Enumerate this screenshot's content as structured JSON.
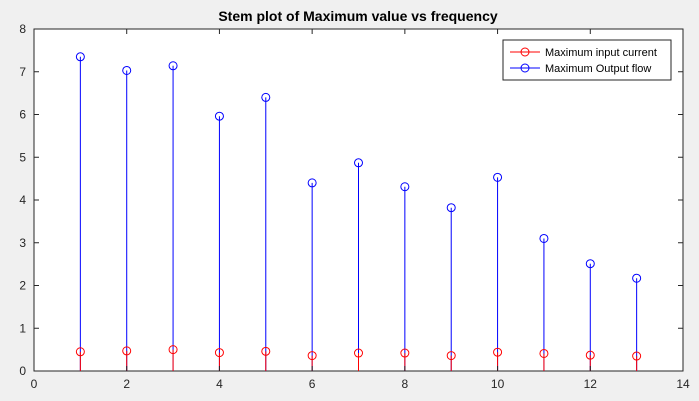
{
  "chart_data": {
    "type": "stem",
    "title": "Stem plot of Maximum value vs frequency",
    "xlabel": "",
    "ylabel": "",
    "xlim": [
      0,
      14
    ],
    "ylim": [
      0,
      8
    ],
    "xticks": [
      "0",
      "2",
      "4",
      "6",
      "8",
      "10",
      "12",
      "14"
    ],
    "yticks": [
      "0",
      "1",
      "2",
      "3",
      "4",
      "5",
      "6",
      "7",
      "8"
    ],
    "grid": false,
    "legend_position": "top-right",
    "x": [
      1,
      2,
      3,
      4,
      5,
      6,
      7,
      8,
      9,
      10,
      11,
      12,
      13
    ],
    "series": [
      {
        "name": "Maximum input current",
        "color": "#ff0000",
        "marker": "circle",
        "values": [
          0.45,
          0.47,
          0.5,
          0.43,
          0.46,
          0.36,
          0.42,
          0.42,
          0.36,
          0.44,
          0.41,
          0.37,
          0.35
        ]
      },
      {
        "name": "Maximum Output flow",
        "color": "#0000ff",
        "marker": "circle",
        "values": [
          7.35,
          7.03,
          7.14,
          5.96,
          6.4,
          4.4,
          4.87,
          4.31,
          3.82,
          4.53,
          3.1,
          2.51,
          2.17
        ]
      }
    ]
  }
}
